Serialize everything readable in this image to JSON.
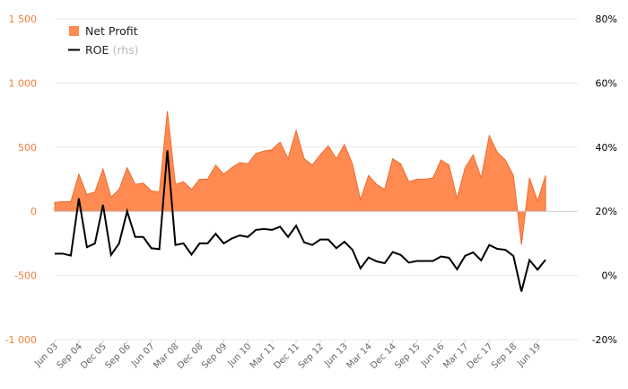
{
  "chart_data": {
    "type": "area",
    "x": [
      "Jun 03",
      "Sep 03",
      "Dec 03",
      "Mar 04",
      "Jun 04",
      "Sep 04",
      "Dec 04",
      "Mar 05",
      "Jun 05",
      "Sep 05",
      "Dec 05",
      "Mar 06",
      "Jun 06",
      "Sep 06",
      "Dec 06",
      "Mar 07",
      "Jun 07",
      "Sep 07",
      "Dec 07",
      "Mar 08",
      "Jun 08",
      "Sep 08",
      "Dec 08",
      "Mar 09",
      "Jun 09",
      "Sep 09",
      "Dec 09",
      "Mar 10",
      "Jun 10",
      "Sep 10",
      "Dec 10",
      "Mar 11",
      "Jun 11",
      "Sep 11",
      "Dec 11",
      "Mar 12",
      "Jun 12",
      "Sep 12",
      "Dec 12",
      "Mar 13",
      "Jun 13",
      "Sep 13",
      "Dec 13",
      "Mar 14",
      "Jun 14",
      "Sep 14",
      "Dec 14",
      "Mar 15",
      "Jun 15",
      "Sep 15",
      "Dec 15",
      "Mar 16",
      "Jun 16",
      "Sep 16",
      "Dec 16",
      "Mar 17",
      "Jun 17",
      "Sep 17",
      "Dec 17",
      "Mar 18",
      "Jun 18",
      "Sep 18",
      "Dec 18",
      "Mar 19",
      "Jun 19",
      "Sep 19"
    ],
    "x_tick_labels": [
      "Jun 03",
      "Sep 04",
      "Dec 05",
      "Sep 06",
      "Jun 07",
      "Mar 08",
      "Dec 08",
      "Sep 09",
      "Jun 10",
      "Mar 11",
      "Dec 11",
      "Sep 12",
      "Jun 13",
      "Mar 14",
      "Dec 14",
      "Sep 15",
      "Jun 16",
      "Mar 17",
      "Dec 17",
      "Sep 18",
      "Jun 19"
    ],
    "series": [
      {
        "name": "Net Profit",
        "axis": "left",
        "color": "#ff8a52",
        "values": [
          70,
          75,
          75,
          290,
          130,
          150,
          330,
          110,
          170,
          340,
          210,
          220,
          160,
          150,
          780,
          210,
          230,
          170,
          250,
          250,
          360,
          290,
          340,
          380,
          370,
          450,
          470,
          480,
          540,
          410,
          630,
          410,
          360,
          440,
          510,
          410,
          520,
          370,
          90,
          280,
          210,
          170,
          410,
          370,
          230,
          250,
          250,
          260,
          400,
          360,
          100,
          340,
          440,
          260,
          590,
          460,
          400,
          280,
          -260,
          260,
          80,
          280,
          0,
          0,
          0,
          0
        ]
      },
      {
        "name": "ROE",
        "note": "(rhs)",
        "axis": "right",
        "color": "#000000",
        "values": [
          6.8,
          6.8,
          6.2,
          24,
          8.8,
          10,
          22,
          6.4,
          10,
          20,
          12,
          12,
          8.5,
          8.2,
          39,
          9.5,
          10,
          6.5,
          10,
          10,
          13,
          10,
          11.5,
          12.5,
          12,
          14.2,
          14.5,
          14.2,
          15.2,
          12,
          15.5,
          10.3,
          9.5,
          11.2,
          11.2,
          8.5,
          10.5,
          8,
          2.2,
          5.6,
          4.4,
          3.8,
          7.3,
          6.4,
          4,
          4.5,
          4.5,
          4.5,
          5.9,
          5.5,
          1.9,
          6.1,
          7.2,
          4.7,
          9.5,
          8.3,
          8,
          6.1,
          -5,
          4.8,
          1.8,
          4.9,
          0,
          0,
          0,
          0
        ]
      }
    ],
    "left_axis": {
      "min": -1000,
      "max": 1500,
      "ticks": [
        "-1 000",
        "-500",
        "0",
        "500",
        "1 000",
        "1 500"
      ]
    },
    "right_axis": {
      "min": -20,
      "max": 80,
      "ticks": [
        "-20%",
        "0%",
        "20%",
        "40%",
        "60%",
        "80%"
      ]
    },
    "grid": "horizontal",
    "legend": "top-left",
    "colors": {
      "area": "#ff8a52",
      "area_stroke": "#ef6c2e",
      "line": "#000000",
      "grid": "#e8e8e8",
      "left_tick": "#f07d3a"
    }
  }
}
